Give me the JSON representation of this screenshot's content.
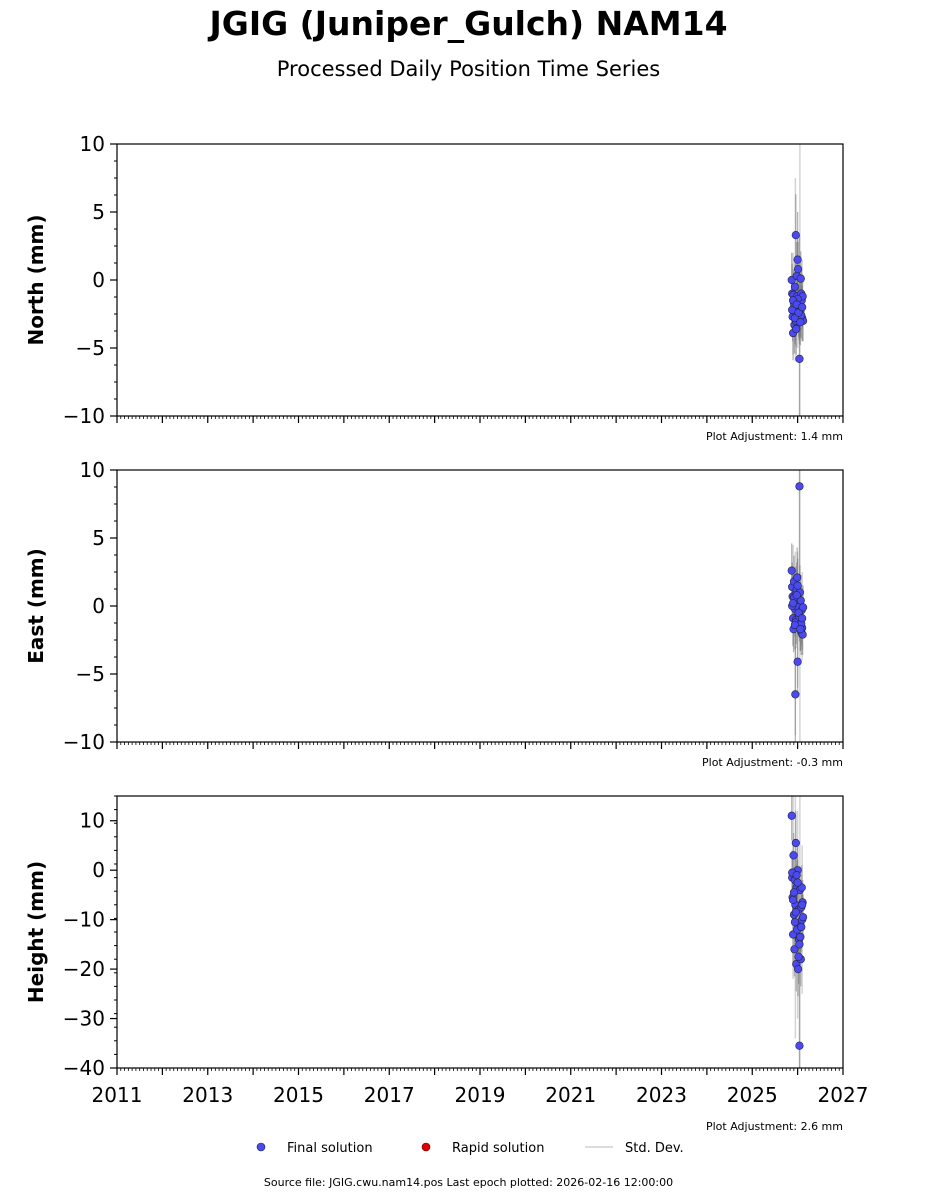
{
  "header": {
    "title": "JGIG (Juniper_Gulch) NAM14",
    "subtitle": "Processed Daily Position Time Series"
  },
  "footer": {
    "source": "Source file: JGIG.cwu.nam14.pos  Last epoch plotted: 2026-02-16 12:00:00"
  },
  "legend": {
    "final": "Final solution",
    "rapid": "Rapid solution",
    "std": "Std. Dev.",
    "placement": "bottom-center"
  },
  "colors": {
    "final": "#4a4aee",
    "rapid": "#e00000",
    "std": "#b0b0b0",
    "marker_edge": "#222244"
  },
  "chart_data": [
    {
      "type": "scatter",
      "ylabel": "North (mm)",
      "ylim": [
        -10,
        10
      ],
      "yticks": [
        10,
        5,
        0,
        -5,
        -10
      ],
      "xlim": [
        2011,
        2027
      ],
      "xticks": [
        2011,
        2013,
        2015,
        2017,
        2019,
        2021,
        2023,
        2025,
        2027
      ],
      "show_xticklabels": false,
      "grid": false,
      "adjustment": "Plot Adjustment: 1.4 mm",
      "series": [
        {
          "kind": "final",
          "x": [
            2025.87,
            2025.88,
            2025.89,
            2025.9,
            2025.91,
            2025.92,
            2025.93,
            2025.94,
            2025.95,
            2025.96,
            2025.97,
            2025.98,
            2025.99,
            2026.0,
            2026.01,
            2026.02,
            2026.03,
            2026.04,
            2026.05,
            2026.06,
            2026.07,
            2026.08,
            2026.09,
            2026.1,
            2026.11,
            2026.12,
            2025.88,
            2025.92,
            2025.96,
            2026.0,
            2026.04,
            2026.08,
            2025.9,
            2025.94,
            2025.98,
            2026.02,
            2026.06,
            2026.1
          ],
          "y": [
            0.0,
            -1.0,
            -2.7,
            -3.9,
            -1.1,
            -2.0,
            -3.3,
            -0.5,
            -2.4,
            3.3,
            -3.6,
            0.3,
            -1.2,
            1.5,
            0.8,
            -2.0,
            -2.6,
            -5.8,
            -1.9,
            -2.3,
            0.1,
            -1.0,
            -1.5,
            -2.8,
            -1.2,
            -3.0,
            -2.2,
            -1.7,
            -3.0,
            -1.4,
            -2.9,
            -2.6,
            -1.5,
            -2.8,
            -1.8,
            -2.4,
            -3.1,
            -2.0
          ],
          "sigma": [
            2.0,
            2.2,
            1.8,
            2.0,
            1.9,
            1.6,
            2.1,
            1.8,
            2.0,
            3.0,
            1.9,
            2.5,
            2.0,
            3.5,
            2.0,
            1.7,
            1.8,
            9.0,
            2.2,
            1.9,
            2.0,
            1.8,
            1.9,
            1.7,
            1.6,
            1.5,
            1.8,
            1.7,
            1.9,
            2.0,
            1.8,
            1.7,
            1.6,
            1.9,
            2.1,
            1.8,
            1.7,
            1.6
          ]
        },
        {
          "kind": "std_band",
          "x": [
            2025.9,
            2025.95,
            2026.0,
            2026.05,
            2026.1
          ],
          "lo": [
            -5.5,
            -6.0,
            -5.0,
            -10.0,
            -4.5
          ],
          "hi": [
            2.0,
            7.5,
            3.0,
            10.0,
            1.5
          ]
        }
      ]
    },
    {
      "type": "scatter",
      "ylabel": "East (mm)",
      "ylim": [
        -10,
        10
      ],
      "yticks": [
        10,
        5,
        0,
        -5,
        -10
      ],
      "xlim": [
        2011,
        2027
      ],
      "xticks": [
        2011,
        2013,
        2015,
        2017,
        2019,
        2021,
        2023,
        2025,
        2027
      ],
      "show_xticklabels": false,
      "grid": false,
      "adjustment": "Plot Adjustment: -0.3 mm",
      "series": [
        {
          "kind": "final",
          "x": [
            2025.87,
            2025.88,
            2025.89,
            2025.9,
            2025.91,
            2025.92,
            2025.93,
            2025.94,
            2025.95,
            2025.96,
            2025.97,
            2025.98,
            2025.99,
            2026.0,
            2026.01,
            2026.02,
            2026.03,
            2026.04,
            2026.05,
            2026.06,
            2026.07,
            2026.08,
            2026.09,
            2026.1,
            2026.11,
            2026.12,
            2025.88,
            2025.92,
            2025.96,
            2026.0,
            2026.04,
            2026.08,
            2025.9,
            2025.94,
            2025.98,
            2026.02,
            2026.06,
            2026.1
          ],
          "y": [
            2.6,
            1.4,
            0.7,
            -0.9,
            -1.7,
            1.8,
            0.3,
            -0.2,
            -6.5,
            0.9,
            -1.0,
            1.2,
            2.1,
            -4.1,
            -0.1,
            0.5,
            -0.6,
            8.8,
            1.0,
            -1.5,
            0.4,
            -1.9,
            -0.3,
            -1.6,
            -2.1,
            -0.1,
            0.0,
            0.6,
            -1.2,
            1.5,
            -0.8,
            -1.3,
            0.2,
            -1.4,
            0.8,
            -0.5,
            -1.7,
            -0.9
          ],
          "sigma": [
            2.0,
            1.8,
            1.9,
            2.0,
            1.7,
            1.9,
            1.8,
            2.0,
            3.5,
            2.0,
            1.8,
            2.0,
            2.2,
            2.5,
            1.9,
            1.8,
            1.7,
            10.0,
            2.0,
            1.8,
            1.9,
            1.7,
            1.8,
            1.6,
            1.5,
            1.6,
            1.8,
            1.7,
            1.9,
            2.0,
            1.8,
            1.6,
            1.7,
            1.8,
            1.9,
            1.7,
            1.6,
            1.5
          ]
        },
        {
          "kind": "std_band",
          "x": [
            2025.9,
            2025.95,
            2026.0,
            2026.05,
            2026.1
          ],
          "lo": [
            -3.0,
            -9.5,
            -6.0,
            -10.0,
            -4.0
          ],
          "hi": [
            4.5,
            4.0,
            4.0,
            10.0,
            2.5
          ]
        }
      ]
    },
    {
      "type": "scatter",
      "ylabel": "Height (mm)",
      "ylim": [
        -40,
        15
      ],
      "yticks": [
        10,
        0,
        -10,
        -20,
        -30,
        -40
      ],
      "xlim": [
        2011,
        2027
      ],
      "xticks": [
        2011,
        2013,
        2015,
        2017,
        2019,
        2021,
        2023,
        2025,
        2027
      ],
      "show_xticklabels": true,
      "grid": false,
      "adjustment": "Plot Adjustment: 2.6 mm",
      "series": [
        {
          "kind": "final",
          "x": [
            2025.87,
            2025.88,
            2025.89,
            2025.9,
            2025.91,
            2025.92,
            2025.93,
            2025.94,
            2025.95,
            2025.96,
            2025.97,
            2025.98,
            2025.99,
            2026.0,
            2026.01,
            2026.02,
            2026.03,
            2026.04,
            2026.05,
            2026.06,
            2026.07,
            2026.08,
            2026.09,
            2026.1,
            2026.11,
            2026.12,
            2025.88,
            2025.92,
            2025.96,
            2026.0,
            2026.04,
            2026.08,
            2025.9,
            2025.94,
            2025.98,
            2026.02,
            2026.06,
            2026.1
          ],
          "y": [
            11.0,
            -1.5,
            -5.5,
            -13.0,
            3.0,
            -9.0,
            -16.0,
            -2.0,
            -7.0,
            5.5,
            -19.0,
            -3.5,
            -12.0,
            0.0,
            -20.0,
            -8.0,
            -14.0,
            -35.5,
            -4.0,
            -11.0,
            -18.0,
            -7.5,
            -3.5,
            -10.0,
            -6.5,
            -9.5,
            -0.5,
            -4.5,
            -8.5,
            -2.5,
            -15.0,
            -11.5,
            -6.0,
            -10.5,
            -1.0,
            -17.5,
            -13.5,
            -7.0
          ],
          "sigma": [
            5.0,
            4.5,
            5.0,
            6.0,
            4.5,
            5.0,
            5.5,
            4.5,
            5.0,
            6.5,
            5.5,
            4.5,
            5.0,
            6.0,
            5.5,
            5.0,
            5.0,
            15.0,
            4.5,
            5.0,
            5.5,
            4.5,
            4.5,
            5.0,
            4.5,
            4.5,
            4.5,
            5.0,
            5.0,
            4.5,
            5.5,
            5.0,
            4.5,
            5.0,
            4.5,
            5.5,
            5.0,
            4.5
          ]
        },
        {
          "kind": "std_band",
          "x": [
            2025.9,
            2025.95,
            2026.0,
            2026.05,
            2026.1
          ],
          "lo": [
            -22.0,
            -34.0,
            -30.0,
            -40.0,
            -25.0
          ],
          "hi": [
            15.0,
            15.0,
            12.0,
            15.0,
            5.0
          ]
        }
      ]
    }
  ]
}
